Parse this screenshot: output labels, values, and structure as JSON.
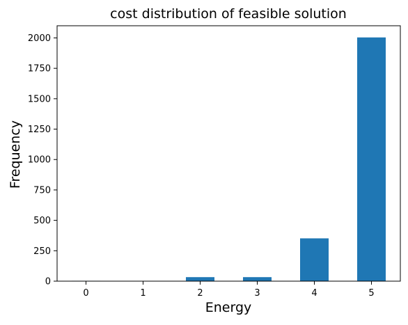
{
  "chart_data": {
    "type": "bar",
    "title": "cost distribution of feasible solution",
    "xlabel": "Energy",
    "ylabel": "Frequency",
    "categories": [
      "0",
      "1",
      "2",
      "3",
      "4",
      "5"
    ],
    "values": [
      3,
      0,
      33,
      33,
      352,
      2004
    ],
    "ylim": [
      0,
      2100
    ],
    "yticks": [
      0,
      250,
      500,
      750,
      1000,
      1250,
      1500,
      1750,
      2000
    ],
    "grid": false,
    "legend": "none",
    "bar_color": "#1f77b4"
  }
}
